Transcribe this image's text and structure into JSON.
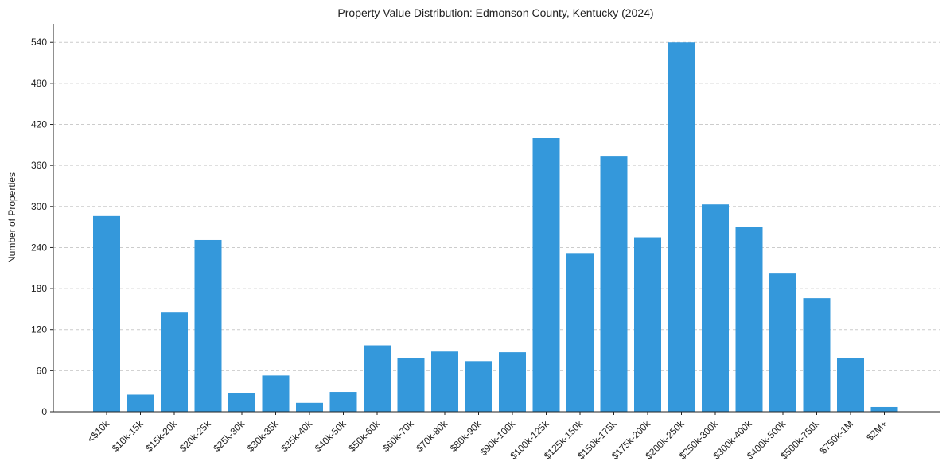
{
  "chart_data": {
    "type": "bar",
    "title": "Property Value Distribution: Edmonson County, Kentucky (2024)",
    "xlabel": "",
    "ylabel": "Number of Properties",
    "categories": [
      "<$10k",
      "$10k-15k",
      "$15k-20k",
      "$20k-25k",
      "$25k-30k",
      "$30k-35k",
      "$35k-40k",
      "$40k-50k",
      "$50k-60k",
      "$60k-70k",
      "$70k-80k",
      "$80k-90k",
      "$90k-100k",
      "$100k-125k",
      "$125k-150k",
      "$150k-175k",
      "$175k-200k",
      "$200k-250k",
      "$250k-300k",
      "$300k-400k",
      "$400k-500k",
      "$500k-750k",
      "$750k-1M",
      "$2M+"
    ],
    "values": [
      286,
      25,
      145,
      251,
      27,
      53,
      13,
      29,
      97,
      79,
      88,
      74,
      87,
      400,
      232,
      374,
      255,
      540,
      303,
      270,
      202,
      166,
      79,
      7
    ],
    "yticks": [
      0,
      60,
      120,
      180,
      240,
      300,
      360,
      420,
      480,
      540
    ],
    "ylim": [
      0,
      567
    ],
    "grid": "y-dashed",
    "bar_color": "#3498db"
  }
}
